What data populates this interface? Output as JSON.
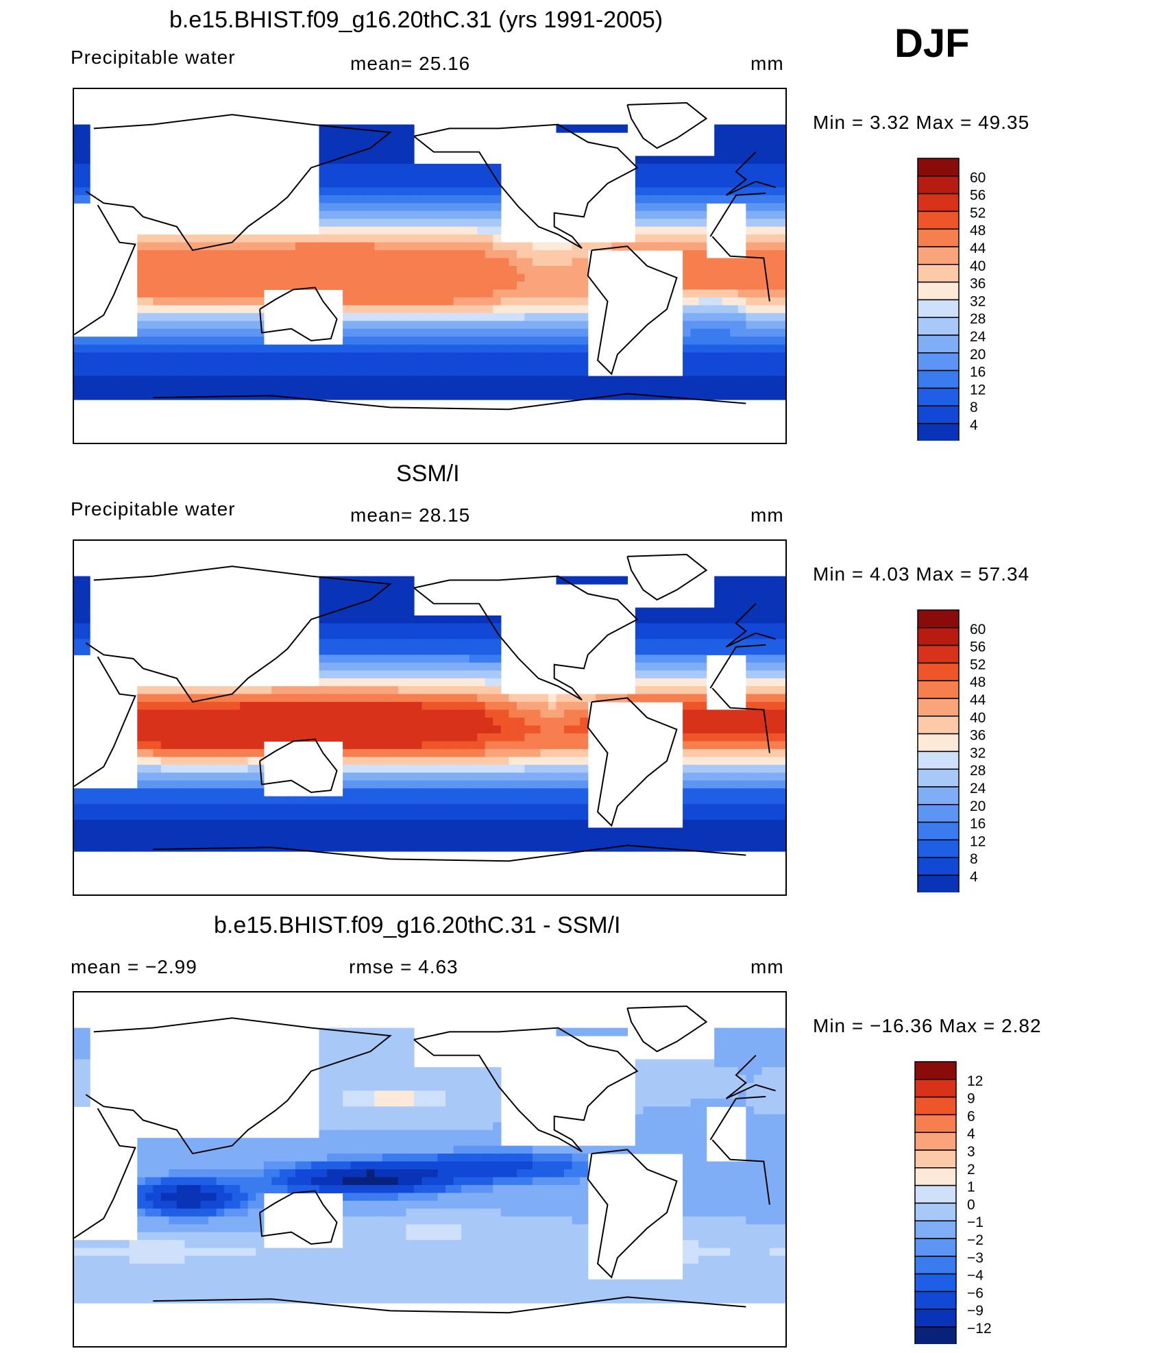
{
  "season": "DJF",
  "colors": {
    "abs_palette": [
      "#08217a",
      "#0a34b8",
      "#1149d6",
      "#1f5fe6",
      "#3a7bf0",
      "#5c95f4",
      "#80aef6",
      "#a8c8f8",
      "#cfe0fb",
      "#fde9d8",
      "#fccaa8",
      "#f9a47a",
      "#f67e4f",
      "#ee5529",
      "#d8321a",
      "#b81b10",
      "#8a0c0a"
    ],
    "diff_palette": [
      "#08217a",
      "#0a34b8",
      "#1149d6",
      "#1f5fe6",
      "#3a7bf0",
      "#5c95f4",
      "#80aef6",
      "#a8c8f8",
      "#cfe0fb",
      "#fde9d8",
      "#fccaa8",
      "#f9a47a",
      "#f67e4f",
      "#ee5529",
      "#d8321a",
      "#8a0c0a"
    ]
  },
  "panels": [
    {
      "title": "b.e15.BHIST.f09_g16.20thC.31 (yrs 1991-2005)",
      "left": "Precipitable  water",
      "center": "mean=   25.16",
      "right": "mm",
      "minmax": "Min  =     3.32  Max  =    49.35"
    },
    {
      "title": "SSM/I",
      "left": "Precipitable  water",
      "center": "mean=   28.15",
      "right": "mm",
      "minmax": "Min  =     4.03  Max  =    57.34"
    },
    {
      "title": "b.e15.BHIST.f09_g16.20thC.31 - SSM/I",
      "left": "mean  =    −2.99",
      "center": "rmse  =     4.63",
      "right": "mm",
      "minmax": "Min  = −16.36  Max  =     2.82"
    }
  ],
  "chart_data": [
    {
      "type": "heatmap",
      "title": "b.e15.BHIST.f09_g16.20thC.31 (yrs 1991-2005)",
      "variable": "Precipitable water",
      "units": "mm",
      "mean": 25.16,
      "min": 3.32,
      "max": 49.35,
      "colorbar_levels": [
        "60",
        "56",
        "52",
        "48",
        "44",
        "40",
        "36",
        "32",
        "28",
        "24",
        "20",
        "16",
        "12",
        "8",
        "4"
      ]
    },
    {
      "type": "heatmap",
      "title": "SSM/I",
      "variable": "Precipitable water",
      "units": "mm",
      "mean": 28.15,
      "min": 4.03,
      "max": 57.34,
      "colorbar_levels": [
        "60",
        "56",
        "52",
        "48",
        "44",
        "40",
        "36",
        "32",
        "28",
        "24",
        "20",
        "16",
        "12",
        "8",
        "4"
      ]
    },
    {
      "type": "heatmap",
      "title": "b.e15.BHIST.f09_g16.20thC.31 - SSM/I",
      "units": "mm",
      "mean": -2.99,
      "rmse": 4.63,
      "min": -16.36,
      "max": 2.82,
      "colorbar_levels": [
        "12",
        "9",
        "6",
        "4",
        "3",
        "2",
        "1",
        "0",
        "−1",
        "−2",
        "−3",
        "−4",
        "−6",
        "−9",
        "−12"
      ]
    }
  ]
}
